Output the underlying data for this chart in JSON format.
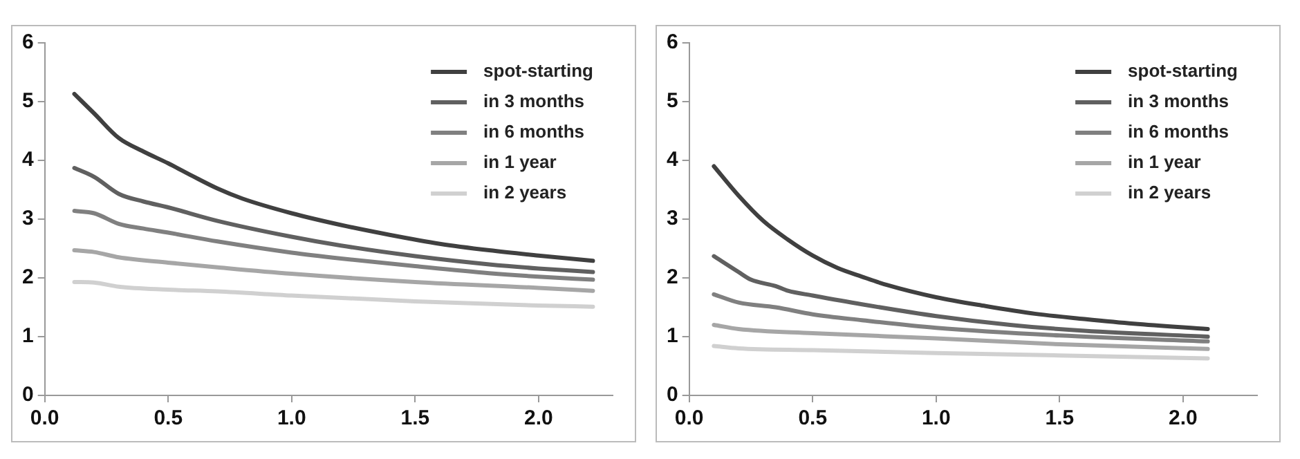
{
  "chart_data": [
    {
      "type": "line",
      "xlim": [
        0,
        2.3
      ],
      "ylim": [
        0,
        6
      ],
      "xticks": [
        {
          "value": 0,
          "label": "0.0"
        },
        {
          "value": 0.5,
          "label": "0.5"
        },
        {
          "value": 1,
          "label": "1.0"
        },
        {
          "value": 1.5,
          "label": "1.5"
        },
        {
          "value": 2,
          "label": "2.0"
        }
      ],
      "yticks": [
        0,
        1,
        2,
        3,
        4,
        5,
        6
      ],
      "grid": false,
      "legend": "top right",
      "marker": "none",
      "line_style": "solid",
      "series": [
        {
          "name": "spot-starting",
          "color": "#404040",
          "x": [
            0.12,
            0.2,
            0.3,
            0.4,
            0.5,
            0.6,
            0.7,
            0.8,
            1.0,
            1.2,
            1.4,
            1.6,
            1.8,
            2.0,
            2.22
          ],
          "values": [
            5.13,
            4.8,
            4.38,
            4.15,
            3.95,
            3.73,
            3.52,
            3.35,
            3.1,
            2.9,
            2.73,
            2.58,
            2.47,
            2.38,
            2.29
          ]
        },
        {
          "name": "in 3 months",
          "color": "#606060",
          "x": [
            0.12,
            0.2,
            0.3,
            0.4,
            0.5,
            0.7,
            1.0,
            1.2,
            1.5,
            1.8,
            2.0,
            2.22
          ],
          "values": [
            3.87,
            3.72,
            3.43,
            3.3,
            3.2,
            2.97,
            2.7,
            2.55,
            2.37,
            2.23,
            2.16,
            2.1
          ]
        },
        {
          "name": "in 6 months",
          "color": "#808080",
          "x": [
            0.12,
            0.2,
            0.3,
            0.4,
            0.5,
            0.7,
            1.0,
            1.2,
            1.5,
            1.8,
            2.0,
            2.22
          ],
          "values": [
            3.14,
            3.1,
            2.92,
            2.84,
            2.77,
            2.62,
            2.43,
            2.33,
            2.2,
            2.08,
            2.02,
            1.97
          ]
        },
        {
          "name": "in 1 year",
          "color": "#a6a6a6",
          "x": [
            0.12,
            0.2,
            0.3,
            0.5,
            0.7,
            1.0,
            1.5,
            2.0,
            2.22
          ],
          "values": [
            2.47,
            2.44,
            2.35,
            2.26,
            2.18,
            2.07,
            1.93,
            1.83,
            1.78
          ]
        },
        {
          "name": "in 2 years",
          "color": "#d0d0d0",
          "x": [
            0.12,
            0.2,
            0.3,
            0.5,
            0.7,
            1.0,
            1.5,
            2.0,
            2.22
          ],
          "values": [
            1.93,
            1.92,
            1.85,
            1.8,
            1.77,
            1.7,
            1.6,
            1.53,
            1.51
          ]
        }
      ]
    },
    {
      "type": "line",
      "xlim": [
        0,
        2.3
      ],
      "ylim": [
        0,
        6
      ],
      "xticks": [
        {
          "value": 0,
          "label": "0.0"
        },
        {
          "value": 0.5,
          "label": "0.5"
        },
        {
          "value": 1,
          "label": "1.0"
        },
        {
          "value": 1.5,
          "label": "1.5"
        },
        {
          "value": 2,
          "label": "2.0"
        }
      ],
      "yticks": [
        0,
        1,
        2,
        3,
        4,
        5,
        6
      ],
      "grid": false,
      "legend": "top right",
      "marker": "none",
      "line_style": "solid",
      "series": [
        {
          "name": "spot-starting",
          "color": "#404040",
          "x": [
            0.1,
            0.2,
            0.3,
            0.4,
            0.5,
            0.6,
            0.7,
            0.8,
            1.0,
            1.2,
            1.4,
            1.6,
            1.8,
            2.1
          ],
          "values": [
            3.9,
            3.4,
            2.97,
            2.65,
            2.38,
            2.17,
            2.02,
            1.88,
            1.67,
            1.52,
            1.39,
            1.3,
            1.22,
            1.13
          ]
        },
        {
          "name": "in 3 months",
          "color": "#606060",
          "x": [
            0.1,
            0.2,
            0.25,
            0.35,
            0.4,
            0.5,
            0.7,
            1.0,
            1.3,
            1.6,
            2.1
          ],
          "values": [
            2.37,
            2.1,
            1.97,
            1.86,
            1.78,
            1.7,
            1.55,
            1.35,
            1.2,
            1.1,
            1.0
          ]
        },
        {
          "name": "in 6 months",
          "color": "#808080",
          "x": [
            0.1,
            0.2,
            0.35,
            0.5,
            0.7,
            1.0,
            1.5,
            2.1
          ],
          "values": [
            1.72,
            1.58,
            1.5,
            1.38,
            1.28,
            1.15,
            1.02,
            0.92
          ]
        },
        {
          "name": "in 1 year",
          "color": "#a6a6a6",
          "x": [
            0.1,
            0.2,
            0.5,
            1.0,
            1.5,
            2.1
          ],
          "values": [
            1.2,
            1.13,
            1.06,
            0.97,
            0.87,
            0.79
          ]
        },
        {
          "name": "in 2 years",
          "color": "#d0d0d0",
          "x": [
            0.1,
            0.2,
            0.5,
            1.0,
            1.5,
            2.1
          ],
          "values": [
            0.84,
            0.8,
            0.77,
            0.72,
            0.68,
            0.63
          ]
        }
      ]
    }
  ]
}
